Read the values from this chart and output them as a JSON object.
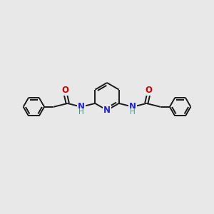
{
  "background_color": "#e8e8e8",
  "bond_color": "#1a1a1a",
  "N_color": "#2222cc",
  "O_color": "#cc0000",
  "H_color": "#339999",
  "line_width": 1.4,
  "figsize": [
    3.0,
    3.0
  ],
  "dpi": 100,
  "xlim": [
    -5.5,
    5.5
  ],
  "ylim": [
    -2.5,
    2.5
  ]
}
